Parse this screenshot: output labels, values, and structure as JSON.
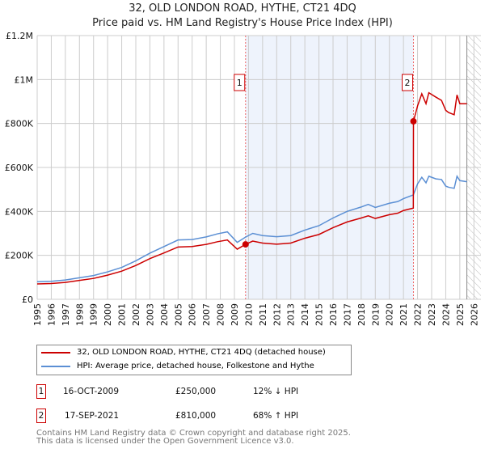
{
  "chart_data": {
    "type": "line",
    "title": "32, OLD LONDON ROAD, HYTHE, CT21 4DQ",
    "subtitle": "Price paid vs. HM Land Registry's House Price Index (HPI)",
    "xlim": [
      1995,
      2026.5
    ],
    "ylim": [
      0,
      1200000
    ],
    "yticks": [
      0,
      200000,
      400000,
      600000,
      800000,
      1000000,
      1200000
    ],
    "ytick_labels": [
      "£0",
      "£200K",
      "£400K",
      "£600K",
      "£800K",
      "£1M",
      "£1.2M"
    ],
    "xtick_labels": [
      "1995",
      "1996",
      "1997",
      "1998",
      "1999",
      "2000",
      "2001",
      "2002",
      "2003",
      "2004",
      "2005",
      "2006",
      "2007",
      "2008",
      "2009",
      "2010",
      "2011",
      "2012",
      "2013",
      "2014",
      "2015",
      "2016",
      "2017",
      "2018",
      "2019",
      "2020",
      "2021",
      "2022",
      "2023",
      "2024",
      "2025",
      "2026"
    ],
    "grid": true,
    "series": [
      {
        "name": "32, OLD LONDON ROAD, HYTHE, CT21 4DQ (detached house)",
        "color": "#cc0000",
        "x": [
          1995,
          1996,
          1997,
          1998,
          1999,
          2000,
          2001,
          2002,
          2003,
          2004,
          2005,
          2006,
          2007,
          2007.8,
          2008.5,
          2009.2,
          2009.79,
          2010.3,
          2011,
          2012,
          2013,
          2014,
          2015,
          2016,
          2017,
          2018,
          2018.5,
          2019,
          2020,
          2020.6,
          2021,
          2021.7,
          2021.71,
          2022,
          2022.3,
          2022.6,
          2022.8,
          2023.3,
          2023.7,
          2024,
          2024.2,
          2024.6,
          2024.8,
          2025,
          2025.5
        ],
        "y": [
          70000,
          72000,
          77000,
          86000,
          95000,
          110000,
          128000,
          154000,
          185000,
          211000,
          238000,
          240000,
          250000,
          262000,
          270000,
          228000,
          250000,
          265000,
          256000,
          251000,
          256000,
          278000,
          295000,
          326000,
          352000,
          370000,
          380000,
          368000,
          385000,
          392000,
          404000,
          415000,
          810000,
          880000,
          935000,
          890000,
          940000,
          920000,
          905000,
          860000,
          850000,
          840000,
          930000,
          890000,
          890000
        ]
      },
      {
        "name": "HPI: Average price, detached house, Folkestone and Hythe",
        "color": "#5b8fd4",
        "x": [
          1995,
          1996,
          1997,
          1998,
          1999,
          2000,
          2001,
          2002,
          2003,
          2004,
          2005,
          2006,
          2007,
          2007.8,
          2008.5,
          2009.2,
          2009.79,
          2010.3,
          2011,
          2012,
          2013,
          2014,
          2015,
          2016,
          2017,
          2018,
          2018.5,
          2019,
          2020,
          2020.6,
          2021,
          2021.7,
          2022,
          2022.3,
          2022.6,
          2022.8,
          2023.3,
          2023.7,
          2024,
          2024.2,
          2024.6,
          2024.8,
          2025,
          2025.5
        ],
        "y": [
          80000,
          82000,
          88000,
          98000,
          108000,
          125000,
          145000,
          175000,
          210000,
          240000,
          270000,
          272000,
          284000,
          298000,
          307000,
          259000,
          283000,
          300000,
          290000,
          285000,
          290000,
          315000,
          335000,
          370000,
          400000,
          420000,
          432000,
          418000,
          437000,
          445000,
          458000,
          475000,
          525000,
          555000,
          530000,
          560000,
          548000,
          545000,
          515000,
          510000,
          505000,
          560000,
          540000,
          535000
        ]
      }
    ],
    "sales": [
      {
        "label": "1",
        "date": "16-OCT-2009",
        "x": 2009.79,
        "price": "£250,000",
        "value": 250000,
        "hpi": "12% ↓ HPI"
      },
      {
        "label": "2",
        "date": "17-SEP-2021",
        "x": 2021.71,
        "price": "£810,000",
        "value": 810000,
        "hpi": "68% ↑ HPI"
      }
    ],
    "shade_color": "#eef3fc",
    "forecast_from": 2025.5
  },
  "footer": {
    "line1": "Contains HM Land Registry data © Crown copyright and database right 2025.",
    "line2": "This data is licensed under the Open Government Licence v3.0."
  }
}
